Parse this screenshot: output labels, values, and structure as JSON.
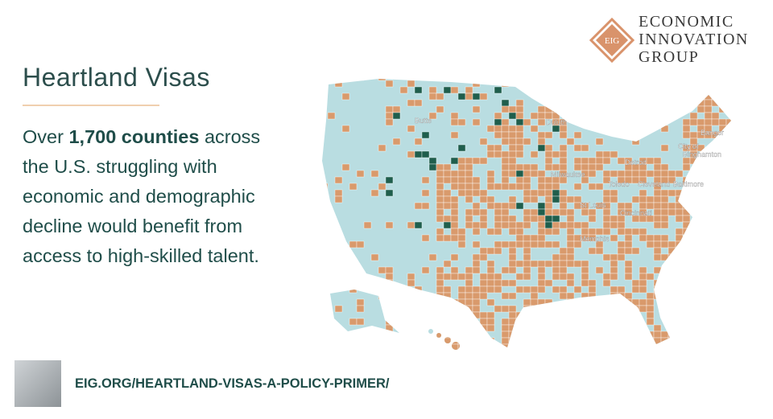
{
  "logo": {
    "lines": [
      "ECONOMIC",
      "INNOVATION",
      "GROUP"
    ],
    "mark": "EIG"
  },
  "title": "Heartland Visas",
  "body": {
    "first": {
      "before": "Over",
      "bold": "1,700 counties",
      "after": "across"
    },
    "lines": [
      "the U.S. struggling with",
      "economic and demographic",
      "decline would benefit from",
      "access to high-skilled talent."
    ]
  },
  "map": {
    "cities": [
      "Butte",
      "Duluth",
      "Bangor",
      "City of",
      "Binghamton",
      "Milwaukee",
      "Detroit",
      "Toledo",
      "Cleveland",
      "Baltimore",
      "St Louis",
      "Cincinnati",
      "Memphis"
    ]
  },
  "url": "EIG.ORG/HEARTLAND-VISAS-A-POLICY-PRIMER/"
}
